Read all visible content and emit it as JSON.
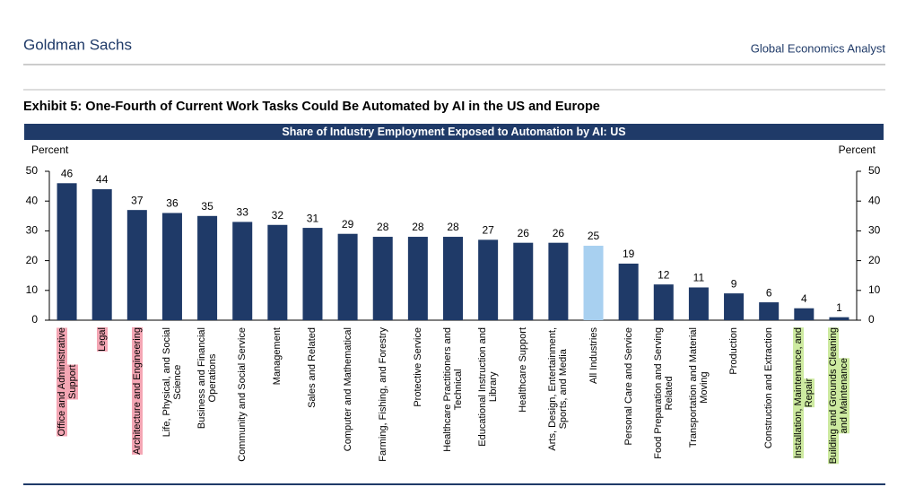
{
  "header": {
    "left": "Goldman Sachs",
    "right": "Global Economics Analyst"
  },
  "exhibit_title": "Exhibit 5: One-Fourth of Current Work Tasks Could Be Automated by AI in the US and Europe",
  "chart_data": {
    "type": "bar",
    "title": "Share of Industry Employment Exposed to Automation by AI: US",
    "ylabel": "Percent",
    "y2label": "Percent",
    "categories": [
      "Office and Administrative\nSupport",
      "Legal",
      "Architecture and Engineering",
      "Life, Physical, and Social\nScience",
      "Business and Financial\nOperations",
      "Community and Social Service",
      "Management",
      "Sales and Related",
      "Computer and Mathematical",
      "Farming, Fishing, and Forestry",
      "Protective Service",
      "Healthcare Practitioners and\nTechnical",
      "Educational Instruction and\nLibrary",
      "Healthcare Support",
      "Arts, Design, Entertainment,\nSports, and Media",
      "All Industries",
      "Personal Care and Service",
      "Food Preparation and Serving\nRelated",
      "Transportation and Material\nMoving",
      "Production",
      "Construction and Extraction",
      "Installation, Maintenance, and\nRepair",
      "Building and Grounds Cleaning\nand Maintenance"
    ],
    "values": [
      46,
      44,
      37,
      36,
      35,
      33,
      32,
      31,
      29,
      28,
      28,
      28,
      27,
      26,
      26,
      25,
      19,
      12,
      11,
      9,
      6,
      4,
      1
    ],
    "colors": [
      "#1f3a68",
      "#1f3a68",
      "#1f3a68",
      "#1f3a68",
      "#1f3a68",
      "#1f3a68",
      "#1f3a68",
      "#1f3a68",
      "#1f3a68",
      "#1f3a68",
      "#1f3a68",
      "#1f3a68",
      "#1f3a68",
      "#1f3a68",
      "#1f3a68",
      "#a8d0f0",
      "#1f3a68",
      "#1f3a68",
      "#1f3a68",
      "#1f3a68",
      "#1f3a68",
      "#1f3a68",
      "#1f3a68"
    ],
    "label_highlights": [
      "#f4a6b4",
      "#f4a6b4",
      "#f4a6b4",
      null,
      null,
      null,
      null,
      null,
      null,
      null,
      null,
      null,
      null,
      null,
      null,
      null,
      null,
      null,
      null,
      null,
      null,
      "#cdeaa0",
      "#cdeaa0"
    ],
    "ylim": [
      0,
      50
    ],
    "yticks": [
      0,
      10,
      20,
      30,
      40,
      50
    ],
    "y2lim": [
      0,
      50
    ],
    "y2ticks": [
      0,
      10,
      20,
      30,
      40,
      50
    ]
  }
}
